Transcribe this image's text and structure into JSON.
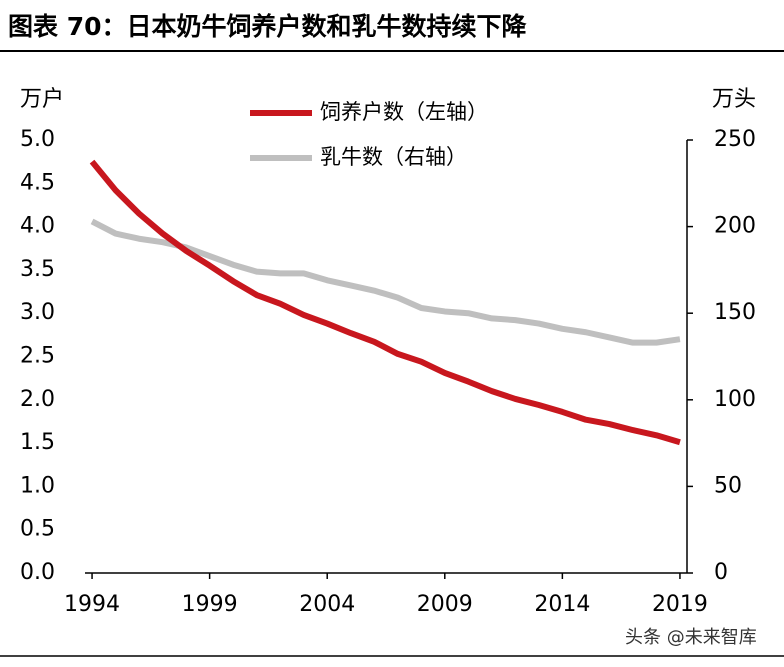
{
  "chart_data": {
    "type": "line",
    "title": "图表 70：日本奶牛饲养户数和乳牛数持续下降",
    "y_label": "万户",
    "y2_label": "万头",
    "x": [
      1994,
      1995,
      1996,
      1997,
      1998,
      1999,
      2000,
      2001,
      2002,
      2003,
      2004,
      2005,
      2006,
      2007,
      2008,
      2009,
      2010,
      2011,
      2012,
      2013,
      2014,
      2015,
      2016,
      2017,
      2018,
      2019
    ],
    "series": [
      {
        "name": "饲养户数（左轴）",
        "color": "#c8171e",
        "values": [
          4.75,
          4.42,
          4.15,
          3.92,
          3.72,
          3.55,
          3.37,
          3.21,
          3.11,
          2.98,
          2.88,
          2.77,
          2.67,
          2.53,
          2.44,
          2.31,
          2.21,
          2.1,
          2.01,
          1.94,
          1.86,
          1.77,
          1.72,
          1.65,
          1.59,
          1.51
        ]
      },
      {
        "name": "乳牛数（右轴）",
        "color": "#bfbfbf",
        "axis": "y2",
        "values": [
          203,
          196,
          193,
          191,
          188,
          183,
          178,
          174,
          173,
          173,
          169,
          166,
          163,
          159,
          153,
          151,
          150,
          147,
          146,
          144,
          141,
          139,
          136,
          133,
          133,
          135
        ]
      }
    ],
    "xlim": [
      1993.7,
      2019.3
    ],
    "xticks": [
      1994,
      1999,
      2004,
      2009,
      2014,
      2019
    ],
    "ylim": [
      0,
      5
    ],
    "yticks": [
      {
        "value": 0,
        "label": "0.0"
      },
      {
        "value": 0.5,
        "label": "0.5"
      },
      {
        "value": 1,
        "label": "1.0"
      },
      {
        "value": 1.5,
        "label": "1.5"
      },
      {
        "value": 2,
        "label": "2.0"
      },
      {
        "value": 2.5,
        "label": "2.5"
      },
      {
        "value": 3,
        "label": "3.0"
      },
      {
        "value": 3.5,
        "label": "3.5"
      },
      {
        "value": 4,
        "label": "4.0"
      },
      {
        "value": 4.5,
        "label": "4.5"
      },
      {
        "value": 5,
        "label": "5.0"
      }
    ],
    "y2lim": [
      0,
      250
    ],
    "y2ticks": [
      0,
      50,
      100,
      150,
      200,
      250
    ],
    "watermark": "头条 @未来智库"
  }
}
